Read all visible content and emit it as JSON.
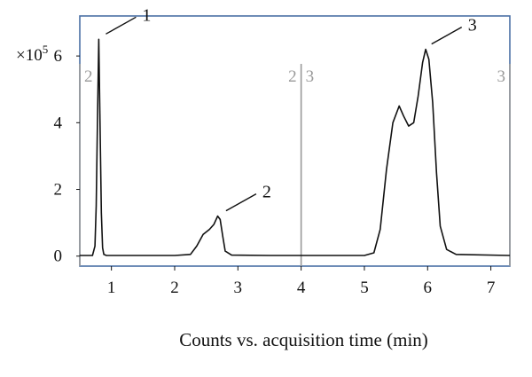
{
  "chart_data": {
    "type": "line",
    "title": "",
    "xlabel": "Counts vs. acquisition time (min)",
    "ylabel": "",
    "y_multiplier_label": "×10",
    "y_multiplier_exponent": "5",
    "xlim": [
      0.5,
      7.3
    ],
    "ylim": [
      -0.3,
      7.2
    ],
    "xticks": [
      1,
      2,
      3,
      4,
      5,
      6,
      7
    ],
    "yticks": [
      0,
      2,
      4,
      6
    ],
    "grid": false,
    "legend": "none",
    "frame_color": "#4a6fa5",
    "line_color": "#111111",
    "segment_line_color": "#999999",
    "segment_labels": [
      {
        "x": 0.5,
        "text": "2",
        "side": "right"
      },
      {
        "x": 4.0,
        "text": "2",
        "side": "left"
      },
      {
        "x": 4.0,
        "text": "3",
        "side": "right"
      },
      {
        "x": 7.3,
        "text": "3",
        "side": "left"
      }
    ],
    "peak_labels": [
      {
        "text": "1",
        "x": 0.8,
        "y": 6.5
      },
      {
        "text": "2",
        "x": 2.7,
        "y": 1.2
      },
      {
        "text": "3",
        "x": 5.95,
        "y": 6.2
      }
    ],
    "series": [
      {
        "x": [
          0.5,
          0.7,
          0.74,
          0.76,
          0.78,
          0.8,
          0.82,
          0.84,
          0.86,
          0.88,
          0.92,
          1.0,
          2.0,
          2.25,
          2.35,
          2.45,
          2.55,
          2.62,
          2.68,
          2.72,
          2.76,
          2.8,
          2.9,
          3.5,
          4.0,
          5.0,
          5.15,
          5.25,
          5.35,
          5.45,
          5.55,
          5.62,
          5.7,
          5.78,
          5.85,
          5.92,
          5.97,
          6.02,
          6.08,
          6.14,
          6.2,
          6.3,
          6.45,
          7.3
        ],
        "y": [
          0.02,
          0.02,
          0.3,
          1.5,
          4.2,
          6.5,
          4.0,
          1.3,
          0.25,
          0.05,
          0.02,
          0.02,
          0.02,
          0.05,
          0.3,
          0.65,
          0.8,
          0.95,
          1.2,
          1.1,
          0.6,
          0.15,
          0.03,
          0.02,
          0.02,
          0.02,
          0.1,
          0.8,
          2.6,
          4.0,
          4.5,
          4.2,
          3.9,
          4.0,
          4.8,
          5.8,
          6.2,
          5.9,
          4.6,
          2.5,
          0.9,
          0.2,
          0.05,
          0.02
        ]
      }
    ]
  }
}
